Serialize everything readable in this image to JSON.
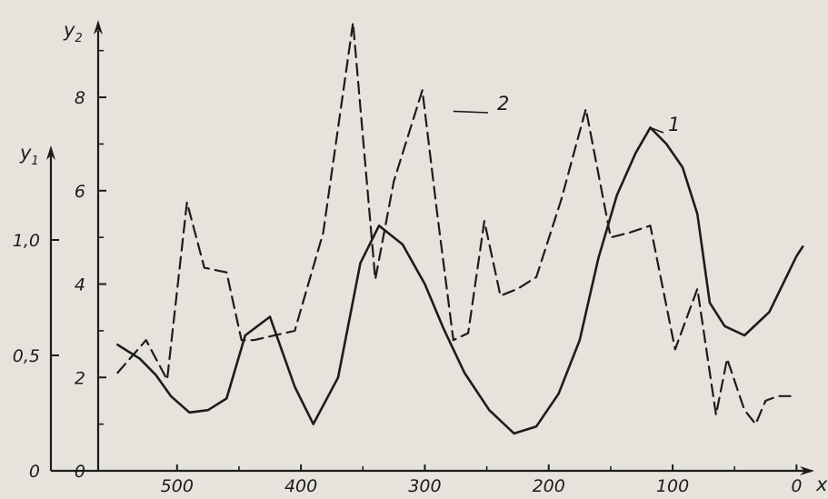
{
  "chart_data": {
    "type": "line",
    "x_axis": {
      "label": "x",
      "range": [
        560,
        -10
      ],
      "ticks": [
        500,
        400,
        300,
        200,
        100,
        0
      ],
      "tick_labels": [
        "500",
        "400",
        "300",
        "200",
        "100",
        "0"
      ]
    },
    "y2_axis": {
      "label": "y",
      "label_sub": "2",
      "range": [
        0,
        9.5
      ],
      "ticks": [
        0,
        2,
        4,
        6,
        8
      ],
      "tick_labels": [
        "0",
        "2",
        "4",
        "6",
        "8"
      ],
      "minor_ticks": [
        1,
        3,
        5,
        7,
        9
      ]
    },
    "y1_axis": {
      "label": "y",
      "label_sub": "1",
      "range": [
        0,
        1.0
      ],
      "ticks": [
        0,
        0.5,
        1.0
      ],
      "tick_labels": [
        "0",
        "0,5",
        "1,0"
      ]
    },
    "series": [
      {
        "name": "1",
        "axis": "y2",
        "style": "solid",
        "x": [
          548,
          530,
          517,
          505,
          490,
          475,
          460,
          445,
          425,
          405,
          390,
          370,
          352,
          337,
          318,
          300,
          285,
          268,
          248,
          228,
          210,
          192,
          175,
          160,
          145,
          130,
          118,
          105,
          92,
          80,
          70,
          58,
          42,
          22,
          0,
          -5
        ],
        "y": [
          2.7,
          2.4,
          2.05,
          1.6,
          1.25,
          1.3,
          1.55,
          2.9,
          3.3,
          1.8,
          1.0,
          2.0,
          4.45,
          5.25,
          4.85,
          4.0,
          3.05,
          2.1,
          1.3,
          0.8,
          0.95,
          1.65,
          2.8,
          4.55,
          5.9,
          6.8,
          7.35,
          7.0,
          6.5,
          5.5,
          3.6,
          3.1,
          2.9,
          3.4,
          4.6,
          4.8
        ]
      },
      {
        "name": "2",
        "axis": "y2",
        "style": "dashed",
        "x": [
          548,
          525,
          508,
          492,
          478,
          460,
          448,
          438,
          405,
          382,
          358,
          340,
          325,
          302,
          290,
          277,
          265,
          252,
          239,
          225,
          210,
          190,
          170,
          150,
          135,
          118,
          98,
          80,
          65,
          56,
          42,
          33,
          25,
          15,
          5
        ],
        "y": [
          2.1,
          2.8,
          1.95,
          5.75,
          4.35,
          4.25,
          2.8,
          2.8,
          3.0,
          5.1,
          9.6,
          4.1,
          6.2,
          8.15,
          5.5,
          2.8,
          2.95,
          5.35,
          3.75,
          3.9,
          4.15,
          5.8,
          7.75,
          5.0,
          5.1,
          5.25,
          2.6,
          3.9,
          1.2,
          2.4,
          1.3,
          1.0,
          1.5,
          1.6,
          1.6
        ]
      }
    ],
    "annotations": [
      {
        "text": "2",
        "series": "2"
      },
      {
        "text": "1",
        "series": "1"
      }
    ],
    "grid": false
  }
}
